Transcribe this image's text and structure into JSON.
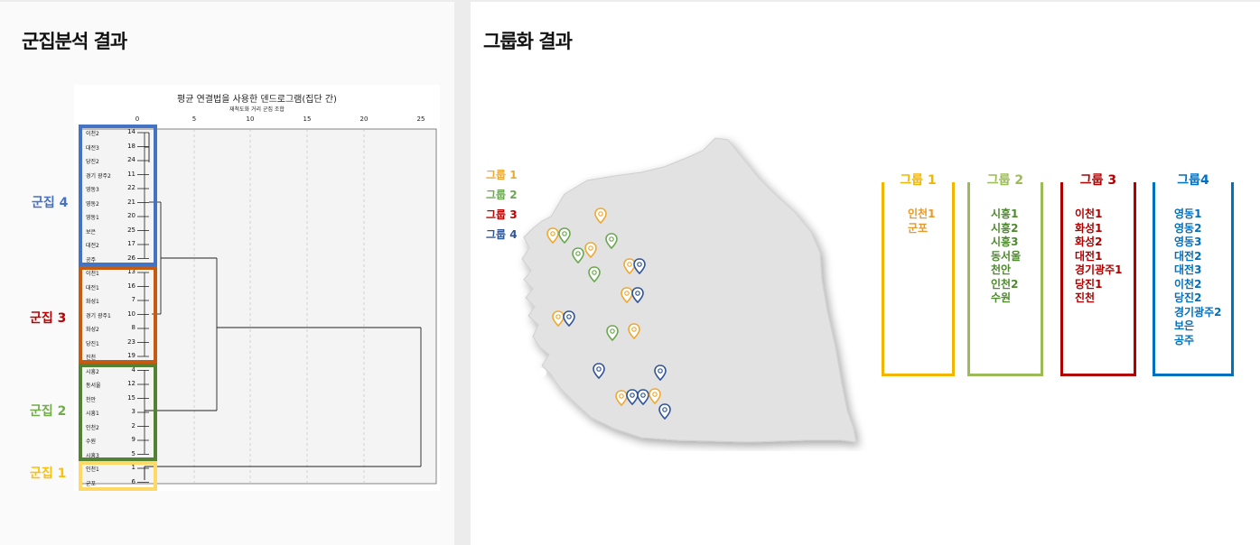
{
  "left_title": "군집분석 결과",
  "right_title": "그룹화 결과",
  "dendrogram": {
    "title": "평균 연결법을 사용한 덴드로그램(집단 간)",
    "subtitle": "재척도화 거리 군집 조합",
    "axis_ticks": [
      "0",
      "5",
      "10",
      "15",
      "20",
      "25"
    ],
    "rows": [
      {
        "name": "이천2",
        "idx": "14"
      },
      {
        "name": "대전3",
        "idx": "18"
      },
      {
        "name": "당진2",
        "idx": "24"
      },
      {
        "name": "경기 광주2",
        "idx": "11"
      },
      {
        "name": "영동3",
        "idx": "22"
      },
      {
        "name": "영동2",
        "idx": "21"
      },
      {
        "name": "영동1",
        "idx": "20"
      },
      {
        "name": "보은",
        "idx": "25"
      },
      {
        "name": "대전2",
        "idx": "17"
      },
      {
        "name": "공주",
        "idx": "26"
      },
      {
        "name": "이천1",
        "idx": "13"
      },
      {
        "name": "대전1",
        "idx": "16"
      },
      {
        "name": "화성1",
        "idx": "7"
      },
      {
        "name": "경기 광주1",
        "idx": "10"
      },
      {
        "name": "화성2",
        "idx": "8"
      },
      {
        "name": "당진1",
        "idx": "23"
      },
      {
        "name": "진천",
        "idx": "19"
      },
      {
        "name": "시흥2",
        "idx": "4"
      },
      {
        "name": "동서울",
        "idx": "12"
      },
      {
        "name": "천안",
        "idx": "15"
      },
      {
        "name": "시흥1",
        "idx": "3"
      },
      {
        "name": "인천2",
        "idx": "2"
      },
      {
        "name": "수원",
        "idx": "9"
      },
      {
        "name": "시흥3",
        "idx": "5"
      },
      {
        "name": "인천1",
        "idx": "1"
      },
      {
        "name": "군포",
        "idx": "6"
      }
    ]
  },
  "clusters": [
    {
      "label": "군집 4",
      "color": "#4472c4"
    },
    {
      "label": "군집 3",
      "color": "#c00000"
    },
    {
      "label": "군집 2",
      "color": "#70ad47"
    },
    {
      "label": "군집 1",
      "color": "#ffc000"
    }
  ],
  "box_colors": {
    "c4": "#4472c4",
    "c3": "#c55a11",
    "c2": "#548235",
    "c1": "#ffd966"
  },
  "map_legend": [
    {
      "label": "그룹 1",
      "color": "#f0a830"
    },
    {
      "label": "그룹 2",
      "color": "#6aa84f"
    },
    {
      "label": "그룹 3",
      "color": "#c00000"
    },
    {
      "label": "그룹 4",
      "color": "#2f5597"
    }
  ],
  "groups": [
    {
      "title": "그룹 1",
      "color": "#f2b600",
      "text_color": "#e69a28",
      "items": [
        "인천1",
        "군포"
      ]
    },
    {
      "title": "그룹 2",
      "color": "#9bbb59",
      "text_color": "#4e8a2e",
      "items": [
        "시흥1",
        "시흥2",
        "시흥3",
        "동서울",
        "천안",
        "인천2",
        "수원"
      ]
    },
    {
      "title": "그룹 3",
      "color": "#b00000",
      "text_color": "#b00000",
      "items": [
        "이천1",
        "화성1",
        "화성2",
        "대전1",
        "경기광주1",
        "당진1",
        "진천"
      ]
    },
    {
      "title": "그룹4",
      "color": "#0070c0",
      "text_color": "#0070c0",
      "items": [
        "영동1",
        "영동2",
        "영동3",
        "대전2",
        "대전3",
        "이천2",
        "당진2",
        "경기광주2",
        "보은",
        "공주"
      ]
    }
  ]
}
